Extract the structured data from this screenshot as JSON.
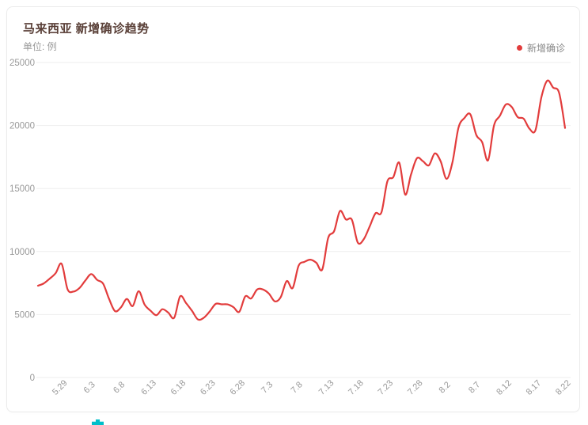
{
  "card": {
    "title": "马来西亚 新增确诊趋势",
    "subtitle": "单位: 例",
    "legend_label": "新增确诊"
  },
  "colors": {
    "line": "#e23c3c",
    "legend_dot": "#e23c3c",
    "title": "#5a4038",
    "axis_text": "#999999",
    "gridline": "#eeeeee",
    "card_border": "#ebebeb",
    "cyan_marker": "#00bfca"
  },
  "chart_data": {
    "type": "line",
    "title": "马来西亚 新增确诊趋势",
    "unit": "例",
    "legend_position": "top-right",
    "grid": true,
    "smooth": true,
    "ylim": [
      0,
      25000
    ],
    "y_ticks": [
      0,
      5000,
      10000,
      15000,
      20000,
      25000
    ],
    "x_tick_labels": [
      "5.29",
      "6.3",
      "6.8",
      "6.13",
      "6.18",
      "6.23",
      "6.28",
      "7.3",
      "7.8",
      "7.13",
      "7.18",
      "7.23",
      "7.28",
      "8.2",
      "8.7",
      "8.12",
      "8.17",
      "8.22"
    ],
    "x_tick_indices": [
      4,
      9,
      14,
      19,
      24,
      29,
      34,
      39,
      44,
      49,
      54,
      59,
      64,
      69,
      74,
      79,
      84,
      89
    ],
    "series": [
      {
        "name": "新增确诊",
        "color": "#e23c3c",
        "values": [
          7289,
          7478,
          7857,
          8290,
          9020,
          6999,
          6824,
          7105,
          7703,
          8209,
          7748,
          7452,
          6241,
          5271,
          5566,
          6239,
          5671,
          6849,
          5793,
          5304,
          4949,
          5419,
          5150,
          4743,
          6440,
          5911,
          5293,
          4611,
          4743,
          5244,
          5841,
          5812,
          5803,
          5586,
          5218,
          6437,
          6276,
          6988,
          6982,
          6658,
          6045,
          6387,
          7654,
          7097,
          8868,
          9180,
          9353,
          9105,
          8574,
          11079,
          11618,
          13215,
          12541,
          12528,
          10710,
          10972,
          11985,
          13034,
          13110,
          15573,
          15902,
          17045,
          14516,
          16117,
          17405,
          17170,
          16840,
          17786,
          17150,
          15764,
          17105,
          19819,
          20596,
          20889,
          19257,
          18688,
          17236,
          19991,
          20780,
          21668,
          21468,
          20670,
          20546,
          19740,
          19631,
          22242,
          23564,
          23010,
          22597,
          19807
        ]
      }
    ]
  }
}
